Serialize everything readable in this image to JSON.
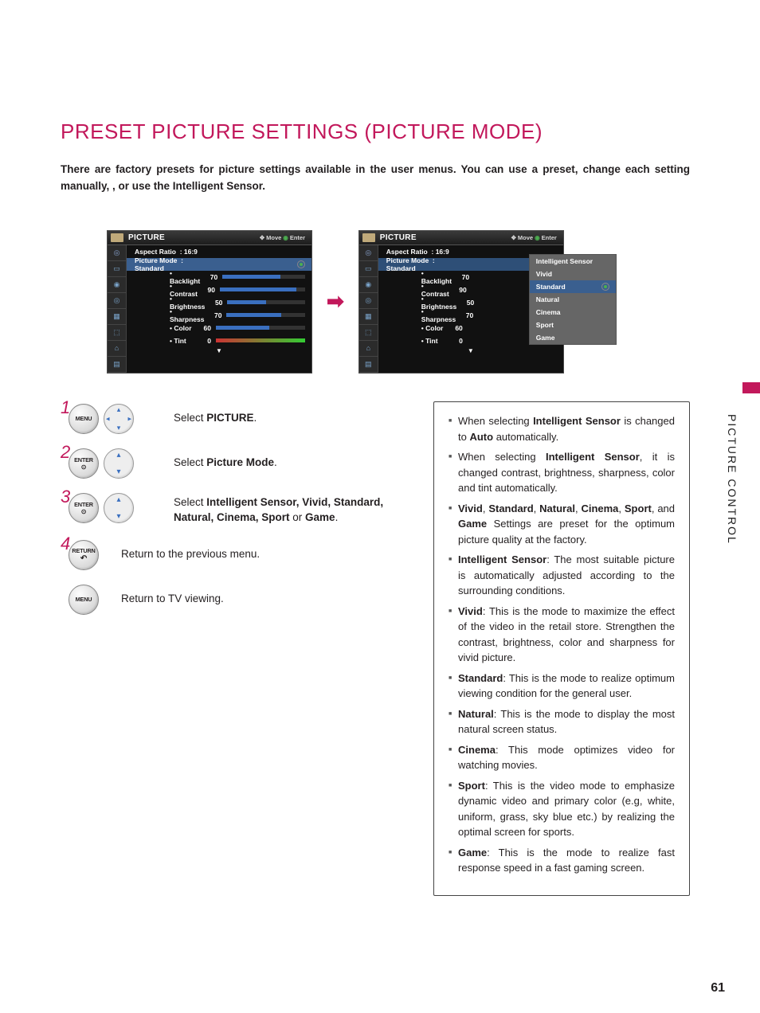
{
  "title": "PRESET PICTURE SETTINGS (PICTURE MODE)",
  "intro": "There are factory presets for picture settings available in the user menus. You can use a preset, change each setting manually, , or use the Intelligent Sensor.",
  "side_tab": "PICTURE CONTROL",
  "page_number": "61",
  "colors": {
    "accent": "#c2185b",
    "osd_highlight": "#3a5f8f",
    "bar_fill": "#3a6fbf",
    "radio_on": "#4caf50"
  },
  "osd": {
    "header_title": "PICTURE",
    "hint_move": "Move",
    "hint_enter": "Enter",
    "aspect_label": "Aspect Ratio",
    "aspect_value": ": 16:9",
    "mode_label": "Picture Mode",
    "mode_value": ": Standard",
    "params": [
      {
        "label": "Backlight",
        "value": "70",
        "pct": 70
      },
      {
        "label": "Contrast",
        "value": "90",
        "pct": 90
      },
      {
        "label": "Brightness",
        "value": "50",
        "pct": 50
      },
      {
        "label": "Sharpness",
        "value": "70",
        "pct": 70
      },
      {
        "label": "Color",
        "value": "60",
        "pct": 60
      },
      {
        "label": "Tint",
        "value": "0",
        "pct": 50,
        "tint": true
      }
    ],
    "dropdown": [
      {
        "label": "Intelligent Sensor",
        "sel": false
      },
      {
        "label": "Vivid",
        "sel": false
      },
      {
        "label": "Standard",
        "sel": true
      },
      {
        "label": "Natural",
        "sel": false
      },
      {
        "label": "Cinema",
        "sel": false
      },
      {
        "label": "Sport",
        "sel": false
      },
      {
        "label": "Game",
        "sel": false
      }
    ]
  },
  "steps": {
    "s1": {
      "num": "1",
      "btn": "MENU",
      "text_a": "Select ",
      "text_b": "PICTURE",
      "text_c": "."
    },
    "s2": {
      "num": "2",
      "btn": "ENTER",
      "text_a": "Select ",
      "text_b": "Picture Mode",
      "text_c": "."
    },
    "s3": {
      "num": "3",
      "btn": "ENTER",
      "text_a": "Select ",
      "list": "Intelligent Sensor, Vivid, Standard, Natural, Cinema, Sport",
      "or": " or ",
      "last": "Game",
      "text_c": "."
    },
    "s4": {
      "num": "4",
      "btn": "RETURN",
      "text": "Return to the previous menu."
    },
    "s5": {
      "btn": "MENU",
      "text": "Return to TV viewing."
    }
  },
  "info": {
    "i1a": "When selecting ",
    "i1b": "Intelligent Sensor",
    "i1c": " is changed to ",
    "i1d": "Auto",
    "i1e": " automatically.",
    "i2a": "When selecting ",
    "i2b": "Intelligent Sensor",
    "i2c": ", it is changed contrast, brightness, sharpness, color and tint automatically.",
    "i3a": "Vivid",
    "i3b": ", ",
    "i3c": "Standard",
    "i3d": ", ",
    "i3e": "Natural",
    "i3f": ", ",
    "i3g": "Cinema",
    "i3h": ", ",
    "i3i": "Sport",
    "i3j": ", and ",
    "i3k": "Game",
    "i3l": " Settings are preset for the optimum picture quality at the factory.",
    "i4a": "Intelligent Sensor",
    "i4b": ": The most suitable picture is automatically adjusted according to the surrounding conditions.",
    "i5a": "Vivid",
    "i5b": ": This is the mode to maximize the effect of the video in the retail store. Strengthen the contrast, brightness, color and sharpness for vivid picture.",
    "i6a": "Standard",
    "i6b": ": This is the mode to realize optimum viewing condition for the general user.",
    "i7a": "Natural",
    "i7b": ": This is the mode to display the most natural screen status.",
    "i8a": "Cinema",
    "i8b": ": This mode optimizes video for watching movies.",
    "i9a": "Sport",
    "i9b": ": This is the video mode to emphasize dynamic video and primary color (e.g, white, uniform, grass, sky blue etc.) by realizing the optimal screen for sports.",
    "i10a": "Game",
    "i10b": ": This is the mode to realize fast response speed in a fast gaming screen."
  }
}
